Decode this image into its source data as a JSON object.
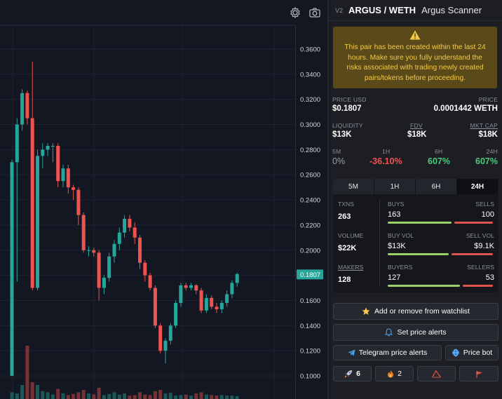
{
  "chart": {
    "price_ticks": [
      "0.3600",
      "0.3400",
      "0.3200",
      "0.3000",
      "0.2800",
      "0.2600",
      "0.2400",
      "0.2200",
      "0.2000",
      "0.1800",
      "0.1600",
      "0.1400",
      "0.1200",
      "0.1000"
    ],
    "current_price_label": "0.1807",
    "colors": {
      "up": "#26a69a",
      "down": "#ef5350",
      "label_bg": "#26a69a"
    }
  },
  "chart_data": {
    "type": "candlestick",
    "ylim": [
      0.09,
      0.375
    ],
    "candles": [
      [
        0.1,
        0.27,
        0.1,
        0.272
      ],
      [
        0.27,
        0.3,
        0.175,
        0.305
      ],
      [
        0.3,
        0.325,
        0.295,
        0.328
      ],
      [
        0.325,
        0.305,
        0.3,
        0.327
      ],
      [
        0.305,
        0.17,
        0.168,
        0.35
      ],
      [
        0.17,
        0.275,
        0.168,
        0.28
      ],
      [
        0.275,
        0.28,
        0.265,
        0.285
      ],
      [
        0.28,
        0.283,
        0.275,
        0.285
      ],
      [
        0.283,
        0.283,
        0.27,
        0.285
      ],
      [
        0.283,
        0.255,
        0.25,
        0.285
      ],
      [
        0.255,
        0.265,
        0.25,
        0.268
      ],
      [
        0.265,
        0.25,
        0.245,
        0.268
      ],
      [
        0.25,
        0.248,
        0.24,
        0.252
      ],
      [
        0.248,
        0.228,
        0.22,
        0.25
      ],
      [
        0.228,
        0.2,
        0.198,
        0.23
      ],
      [
        0.2,
        0.2,
        0.195,
        0.203
      ],
      [
        0.2,
        0.198,
        0.195,
        0.202
      ],
      [
        0.198,
        0.17,
        0.16,
        0.2
      ],
      [
        0.17,
        0.178,
        0.165,
        0.18
      ],
      [
        0.178,
        0.195,
        0.175,
        0.198
      ],
      [
        0.195,
        0.205,
        0.19,
        0.208
      ],
      [
        0.205,
        0.214,
        0.2,
        0.218
      ],
      [
        0.214,
        0.225,
        0.21,
        0.228
      ],
      [
        0.225,
        0.218,
        0.215,
        0.228
      ],
      [
        0.218,
        0.21,
        0.205,
        0.222
      ],
      [
        0.21,
        0.19,
        0.185,
        0.212
      ],
      [
        0.19,
        0.18,
        0.175,
        0.192
      ],
      [
        0.18,
        0.17,
        0.168,
        0.182
      ],
      [
        0.17,
        0.14,
        0.138,
        0.172
      ],
      [
        0.14,
        0.12,
        0.118,
        0.142
      ],
      [
        0.12,
        0.128,
        0.11,
        0.13
      ],
      [
        0.128,
        0.14,
        0.125,
        0.142
      ],
      [
        0.14,
        0.158,
        0.138,
        0.16
      ],
      [
        0.158,
        0.172,
        0.155,
        0.174
      ],
      [
        0.172,
        0.17,
        0.168,
        0.174
      ],
      [
        0.17,
        0.172,
        0.168,
        0.174
      ],
      [
        0.172,
        0.168,
        0.165,
        0.173
      ],
      [
        0.168,
        0.152,
        0.15,
        0.17
      ],
      [
        0.152,
        0.162,
        0.15,
        0.165
      ],
      [
        0.162,
        0.155,
        0.153,
        0.164
      ],
      [
        0.155,
        0.153,
        0.15,
        0.158
      ],
      [
        0.153,
        0.158,
        0.15,
        0.16
      ],
      [
        0.158,
        0.165,
        0.155,
        0.168
      ],
      [
        0.165,
        0.174,
        0.162,
        0.176
      ],
      [
        0.174,
        0.181,
        0.171,
        0.182
      ]
    ],
    "volumes": [
      0.12,
      0.1,
      0.25,
      0.95,
      0.3,
      0.25,
      0.14,
      0.12,
      0.08,
      0.18,
      0.1,
      0.07,
      0.09,
      0.12,
      0.16,
      0.1,
      0.08,
      0.2,
      0.07,
      0.09,
      0.12,
      0.08,
      0.1,
      0.06,
      0.07,
      0.12,
      0.08,
      0.07,
      0.14,
      0.16,
      0.1,
      0.11,
      0.06,
      0.07,
      0.08,
      0.06,
      0.1,
      0.12,
      0.08,
      0.07,
      0.06,
      0.07,
      0.06,
      0.06,
      0.05
    ]
  },
  "header": {
    "version": "V2",
    "pair": "ARGUS / WETH",
    "name": "Argus Scanner"
  },
  "warning": {
    "text": "This pair has been created within the last 24 hours. Make sure you fully understand the risks associated with trading newly created pairs/tokens before proceeding."
  },
  "prices": {
    "usd_label": "PRICE USD",
    "usd_value": "$0.1807",
    "price_label": "PRICE",
    "price_value": "0.0001442 WETH"
  },
  "metrics": {
    "liq_label": "LIQUIDITY",
    "liq_value": "$13K",
    "fdv_label": "FDV",
    "fdv_value": "$18K",
    "mcap_label": "MKT CAP",
    "mcap_value": "$18K"
  },
  "changes": [
    {
      "label": "5M",
      "value": "0%",
      "color": "#9aa0a6"
    },
    {
      "label": "1H",
      "value": "-36.10%",
      "color": "#ef5350"
    },
    {
      "label": "6H",
      "value": "607%",
      "color": "#4cc97a"
    },
    {
      "label": "24H",
      "value": "607%",
      "color": "#4cc97a"
    }
  ],
  "tabs": [
    "5M",
    "1H",
    "6H",
    "24H"
  ],
  "active_tab": "24H",
  "txns": {
    "label": "TXNS",
    "value": "263",
    "buys_label": "BUYS",
    "buys": "163",
    "sells_label": "SELLS",
    "sells": "100",
    "buy_fraction": 0.62
  },
  "volume": {
    "label": "VOLUME",
    "value": "$22K",
    "buys_label": "BUY VOL",
    "buys": "$13K",
    "sells_label": "SELL VOL",
    "sells": "$9.1K",
    "buy_fraction": 0.59
  },
  "makers": {
    "label": "MAKERS",
    "value": "128",
    "buys_label": "BUYERS",
    "buys": "127",
    "sells_label": "SELLERS",
    "sells": "53",
    "buy_fraction": 0.7
  },
  "buttons": {
    "watchlist": "Add or remove from watchlist",
    "alerts": "Set price alerts",
    "telegram": "Telegram price alerts",
    "pricebot": "Price bot",
    "rocket_count": "6",
    "fire_count": "2"
  }
}
